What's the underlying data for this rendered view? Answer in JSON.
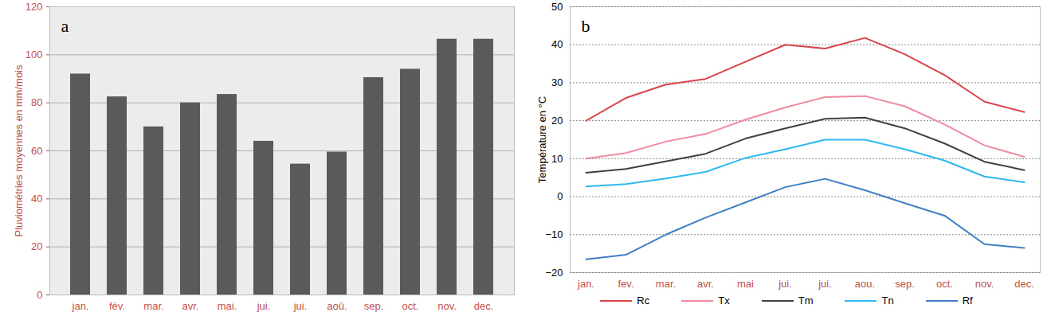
{
  "chart_data": [
    {
      "type": "bar",
      "title": "a",
      "y_label": "Pluviométries moyennes en mm/mois",
      "categories": [
        "jan.",
        "fév.",
        "mar.",
        "avr.",
        "mai.",
        "jui.",
        "jui.",
        "aoû.",
        "sep.",
        "oct.",
        "nov.",
        "dec."
      ],
      "values": [
        92,
        82.5,
        70,
        80,
        83.5,
        64,
        54.5,
        59.5,
        90.5,
        94,
        106.5,
        106.5
      ],
      "color": "#5a5a5a",
      "ylim": [
        0,
        120
      ],
      "yticks": [
        0,
        20,
        40,
        60,
        80,
        100,
        120
      ],
      "grid": true
    },
    {
      "type": "line",
      "title": "b",
      "y_label": "Température en °C",
      "categories": [
        "jan.",
        "fev.",
        "mar.",
        "avr.",
        "mai",
        "jui.",
        "jui.",
        "aou.",
        "sep.",
        "oct.",
        "nov.",
        "dec."
      ],
      "series": [
        {
          "name": "Rc",
          "color": "#d9434e",
          "values": [
            20,
            26,
            29.5,
            31,
            35.5,
            40,
            39,
            41.8,
            37.5,
            32,
            25,
            22.3
          ]
        },
        {
          "name": "Tx",
          "color": "#f08aa0",
          "values": [
            10,
            11.5,
            14.5,
            16.5,
            20.3,
            23.5,
            26.2,
            26.5,
            23.8,
            19,
            13.5,
            10.5
          ]
        },
        {
          "name": "Tm",
          "color": "#404040",
          "values": [
            6.3,
            7.3,
            9.3,
            11.3,
            15.3,
            18,
            20.5,
            20.8,
            18,
            14,
            9.2,
            7
          ]
        },
        {
          "name": "Tn",
          "color": "#2fb8ef",
          "values": [
            2.7,
            3.3,
            4.8,
            6.5,
            10.2,
            12.5,
            15,
            15,
            12.5,
            9.5,
            5.3,
            3.8
          ]
        },
        {
          "name": "Rf",
          "color": "#3f7fc4",
          "values": [
            -16.5,
            -15.3,
            -10,
            -5.5,
            -1.5,
            2.5,
            4.7,
            1.7,
            -1.7,
            -5,
            -12.5,
            -13.5
          ]
        }
      ],
      "ylim": [
        -20,
        50
      ],
      "yticks": [
        -20,
        -10,
        0,
        10,
        20,
        30,
        40,
        50
      ],
      "grid": true,
      "legend": "bottom"
    }
  ]
}
